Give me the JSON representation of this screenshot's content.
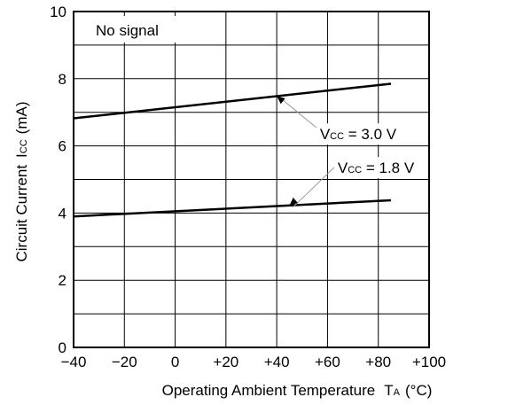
{
  "chart_data": {
    "type": "line",
    "xlabel": "Operating Ambient Temperature",
    "xlabel_symbol": {
      "main": "T",
      "sub": "A",
      "unit": "(°C)"
    },
    "ylabel": "Circuit Current",
    "ylabel_symbol": {
      "main": "I",
      "sub": "CC",
      "unit": "(mA)"
    },
    "xlim": [
      -40,
      100
    ],
    "ylim": [
      0,
      10
    ],
    "x_ticks": [
      -40,
      -20,
      0,
      20,
      40,
      60,
      80,
      100
    ],
    "x_tick_labels": [
      "−40",
      "−20",
      "0",
      "+20",
      "+40",
      "+60",
      "+80",
      "+100"
    ],
    "y_ticks": [
      0,
      2,
      4,
      6,
      8,
      10
    ],
    "y_tick_labels": [
      "0",
      "2",
      "4",
      "6",
      "8",
      "10"
    ],
    "grid": true,
    "annotation_box": "No signal",
    "series": [
      {
        "name": "VCC = 3.0 V",
        "label_parts": {
          "main": "V",
          "sub": "CC",
          "rest": " = 3.0 V"
        },
        "x": [
          -40,
          85
        ],
        "y": [
          6.82,
          7.85
        ],
        "label_anchor_x": 40,
        "label_position": {
          "x": 57,
          "y": 6.3
        }
      },
      {
        "name": "VCC = 1.8 V",
        "label_parts": {
          "main": "V",
          "sub": "CC",
          "rest": " = 1.8 V"
        },
        "x": [
          -40,
          85
        ],
        "y": [
          3.9,
          4.38
        ],
        "label_anchor_x": 45,
        "label_position": {
          "x": 64,
          "y": 5.3
        }
      }
    ]
  }
}
